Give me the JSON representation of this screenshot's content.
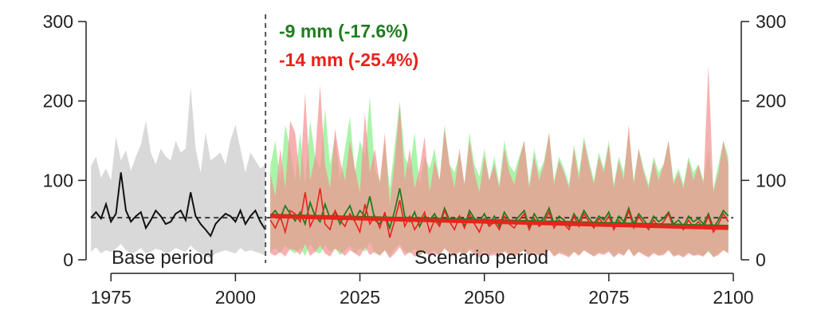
{
  "colors": {
    "green_line": "#1e7d1e",
    "red_line": "#e8231c",
    "green_fill": "#8ef08e",
    "red_fill": "#f48f8f",
    "gray_fill": "#d9d9d9",
    "black_line": "#111111"
  },
  "chart_data": {
    "type": "line",
    "xlim": [
      1970,
      2100
    ],
    "ylim": [
      0,
      300
    ],
    "x_ticks": [
      1975,
      2000,
      2025,
      2050,
      2075,
      2100
    ],
    "y_ticks": [
      0,
      100,
      200,
      300
    ],
    "grid": false,
    "scenario_start": 2007,
    "base_mean": 53,
    "period_labels": {
      "base": "Base period",
      "scenario": "Scenario period"
    },
    "annotations": [
      {
        "text": "-9 mm (-17.6%)",
        "series": "green"
      },
      {
        "text": "-14 mm (-25.4%)",
        "series": "red"
      }
    ],
    "base_series": {
      "x": [
        1971,
        1972,
        1973,
        1974,
        1975,
        1976,
        1977,
        1978,
        1979,
        1980,
        1981,
        1982,
        1983,
        1984,
        1985,
        1986,
        1987,
        1988,
        1989,
        1990,
        1991,
        1992,
        1993,
        1994,
        1995,
        1996,
        1997,
        1998,
        1999,
        2000,
        2001,
        2002,
        2003,
        2004,
        2005,
        2006
      ],
      "values": [
        53,
        60,
        52,
        70,
        48,
        58,
        110,
        62,
        48,
        55,
        60,
        40,
        50,
        62,
        55,
        45,
        48,
        58,
        62,
        50,
        85,
        55,
        45,
        38,
        30,
        45,
        52,
        58,
        55,
        48,
        62,
        45,
        55,
        62,
        48,
        38
      ]
    },
    "base_band": {
      "x": [
        1971,
        1972,
        1973,
        1974,
        1975,
        1976,
        1977,
        1978,
        1979,
        1980,
        1981,
        1982,
        1983,
        1984,
        1985,
        1986,
        1987,
        1988,
        1989,
        1990,
        1991,
        1992,
        1993,
        1994,
        1995,
        1996,
        1997,
        1998,
        1999,
        2000,
        2001,
        2002,
        2003,
        2004,
        2005,
        2006
      ],
      "upper": [
        118,
        130,
        103,
        115,
        100,
        155,
        125,
        138,
        112,
        130,
        145,
        175,
        135,
        120,
        140,
        130,
        125,
        150,
        135,
        140,
        218,
        140,
        110,
        160,
        125,
        130,
        135,
        120,
        150,
        170,
        140,
        110,
        135,
        125,
        115,
        120
      ],
      "lower": [
        10,
        16,
        8,
        12,
        10,
        14,
        20,
        12,
        8,
        10,
        15,
        8,
        10,
        14,
        12,
        8,
        10,
        15,
        12,
        10,
        18,
        12,
        8,
        5,
        2,
        8,
        10,
        12,
        10,
        8,
        15,
        10,
        12,
        10,
        8,
        5
      ]
    },
    "green_series": {
      "name": "green",
      "change_label": "-9 mm (-17.6%)",
      "trend": [
        56,
        42
      ],
      "x": [
        2007,
        2008,
        2009,
        2010,
        2011,
        2012,
        2013,
        2014,
        2015,
        2016,
        2017,
        2018,
        2019,
        2020,
        2021,
        2022,
        2023,
        2024,
        2025,
        2026,
        2027,
        2028,
        2029,
        2030,
        2031,
        2032,
        2033,
        2034,
        2035,
        2036,
        2037,
        2038,
        2039,
        2040,
        2041,
        2042,
        2043,
        2044,
        2045,
        2046,
        2047,
        2048,
        2049,
        2050,
        2051,
        2052,
        2053,
        2054,
        2055,
        2056,
        2057,
        2058,
        2059,
        2060,
        2061,
        2062,
        2063,
        2064,
        2065,
        2066,
        2067,
        2068,
        2069,
        2070,
        2071,
        2072,
        2073,
        2074,
        2075,
        2076,
        2077,
        2078,
        2079,
        2080,
        2081,
        2082,
        2083,
        2084,
        2085,
        2086,
        2087,
        2088,
        2089,
        2090,
        2091,
        2092,
        2093,
        2094,
        2095,
        2096,
        2097,
        2098,
        2099
      ],
      "values": [
        55,
        62,
        52,
        68,
        58,
        49,
        60,
        45,
        72,
        55,
        48,
        70,
        52,
        60,
        45,
        58,
        68,
        50,
        62,
        55,
        80,
        50,
        45,
        58,
        40,
        62,
        90,
        55,
        48,
        60,
        42,
        55,
        50,
        58,
        45,
        65,
        50,
        48,
        55,
        42,
        62,
        52,
        48,
        58,
        45,
        55,
        42,
        60,
        50,
        48,
        55,
        62,
        42,
        58,
        48,
        52,
        65,
        45,
        55,
        50,
        42,
        58,
        48,
        62,
        52,
        45,
        55,
        50,
        60,
        42,
        55,
        48,
        65,
        45,
        58,
        50,
        42,
        55,
        48,
        52,
        60,
        45,
        50,
        42,
        55,
        48,
        52,
        45,
        58,
        40,
        50,
        62,
        55
      ]
    },
    "green_band": {
      "upper": [
        118,
        150,
        100,
        170,
        140,
        100,
        160,
        95,
        175,
        130,
        115,
        190,
        120,
        155,
        100,
        140,
        180,
        110,
        150,
        130,
        205,
        115,
        100,
        150,
        90,
        145,
        200,
        130,
        115,
        160,
        95,
        130,
        115,
        140,
        100,
        170,
        120,
        110,
        135,
        95,
        160,
        120,
        105,
        140,
        100,
        130,
        95,
        150,
        120,
        110,
        130,
        150,
        95,
        140,
        110,
        125,
        160,
        100,
        130,
        115,
        95,
        145,
        110,
        155,
        125,
        100,
        135,
        115,
        150,
        95,
        130,
        110,
        160,
        100,
        140,
        115,
        95,
        130,
        110,
        120,
        150,
        100,
        115,
        95,
        130,
        110,
        120,
        100,
        140,
        90,
        120,
        150,
        130
      ],
      "lower": [
        10,
        15,
        8,
        18,
        12,
        8,
        15,
        5,
        20,
        10,
        8,
        18,
        10,
        14,
        6,
        12,
        18,
        8,
        15,
        10,
        22,
        8,
        6,
        12,
        4,
        14,
        20,
        10,
        8,
        14,
        5,
        10,
        8,
        12,
        6,
        15,
        10,
        8,
        10,
        5,
        14,
        10,
        6,
        12,
        6,
        10,
        5,
        12,
        8,
        6,
        10,
        12,
        5,
        10,
        6,
        8,
        14,
        5,
        10,
        8,
        5,
        10,
        6,
        12,
        8,
        5,
        10,
        8,
        12,
        4,
        10,
        6,
        14,
        5,
        10,
        8,
        4,
        10,
        6,
        8,
        12,
        5,
        8,
        4,
        10,
        6,
        8,
        5,
        10,
        4,
        8,
        12,
        10
      ]
    },
    "red_series": {
      "name": "red",
      "change_label": "-14 mm (-25.4%)",
      "trend": [
        55,
        40
      ],
      "x": [
        2007,
        2008,
        2009,
        2010,
        2011,
        2012,
        2013,
        2014,
        2015,
        2016,
        2017,
        2018,
        2019,
        2020,
        2021,
        2022,
        2023,
        2024,
        2025,
        2026,
        2027,
        2028,
        2029,
        2030,
        2031,
        2032,
        2033,
        2034,
        2035,
        2036,
        2037,
        2038,
        2039,
        2040,
        2041,
        2042,
        2043,
        2044,
        2045,
        2046,
        2047,
        2048,
        2049,
        2050,
        2051,
        2052,
        2053,
        2054,
        2055,
        2056,
        2057,
        2058,
        2059,
        2060,
        2061,
        2062,
        2063,
        2064,
        2065,
        2066,
        2067,
        2068,
        2069,
        2070,
        2071,
        2072,
        2073,
        2074,
        2075,
        2076,
        2077,
        2078,
        2079,
        2080,
        2081,
        2082,
        2083,
        2084,
        2085,
        2086,
        2087,
        2088,
        2089,
        2090,
        2091,
        2092,
        2093,
        2094,
        2095,
        2096,
        2097,
        2098,
        2099
      ],
      "values": [
        50,
        40,
        55,
        35,
        62,
        58,
        48,
        85,
        42,
        55,
        90,
        45,
        38,
        62,
        50,
        42,
        58,
        48,
        35,
        70,
        45,
        55,
        40,
        60,
        28,
        50,
        75,
        42,
        55,
        38,
        48,
        60,
        35,
        50,
        42,
        62,
        48,
        38,
        55,
        40,
        58,
        45,
        35,
        52,
        42,
        48,
        38,
        55,
        45,
        40,
        50,
        58,
        38,
        52,
        42,
        48,
        60,
        40,
        50,
        45,
        38,
        55,
        42,
        58,
        48,
        40,
        52,
        45,
        55,
        38,
        50,
        42,
        62,
        40,
        55,
        45,
        38,
        50,
        42,
        48,
        58,
        40,
        45,
        38,
        50,
        42,
        48,
        40,
        55,
        35,
        45,
        58,
        48
      ]
    },
    "red_band": {
      "upper": [
        110,
        80,
        140,
        90,
        175,
        160,
        100,
        210,
        100,
        130,
        220,
        120,
        90,
        165,
        125,
        100,
        150,
        115,
        85,
        185,
        110,
        140,
        95,
        160,
        70,
        125,
        195,
        100,
        140,
        90,
        115,
        155,
        85,
        125,
        100,
        165,
        120,
        90,
        140,
        95,
        150,
        110,
        85,
        130,
        100,
        120,
        90,
        140,
        110,
        95,
        125,
        150,
        90,
        130,
        100,
        120,
        160,
        95,
        125,
        110,
        90,
        140,
        100,
        150,
        120,
        95,
        130,
        110,
        145,
        90,
        125,
        100,
        170,
        95,
        140,
        110,
        90,
        125,
        100,
        120,
        150,
        95,
        110,
        90,
        125,
        100,
        120,
        95,
        245,
        85,
        110,
        150,
        120
      ],
      "lower": [
        8,
        5,
        10,
        4,
        14,
        12,
        6,
        20,
        5,
        10,
        18,
        8,
        4,
        14,
        10,
        5,
        12,
        8,
        4,
        16,
        6,
        10,
        5,
        12,
        2,
        8,
        16,
        5,
        10,
        4,
        6,
        12,
        3,
        8,
        5,
        14,
        8,
        4,
        10,
        5,
        12,
        6,
        3,
        8,
        5,
        6,
        3,
        10,
        6,
        4,
        8,
        12,
        3,
        8,
        5,
        6,
        12,
        4,
        8,
        6,
        3,
        10,
        5,
        12,
        8,
        4,
        8,
        6,
        10,
        3,
        8,
        5,
        14,
        4,
        10,
        6,
        3,
        8,
        5,
        6,
        12,
        4,
        6,
        3,
        8,
        5,
        6,
        4,
        12,
        3,
        6,
        12,
        8
      ]
    }
  }
}
